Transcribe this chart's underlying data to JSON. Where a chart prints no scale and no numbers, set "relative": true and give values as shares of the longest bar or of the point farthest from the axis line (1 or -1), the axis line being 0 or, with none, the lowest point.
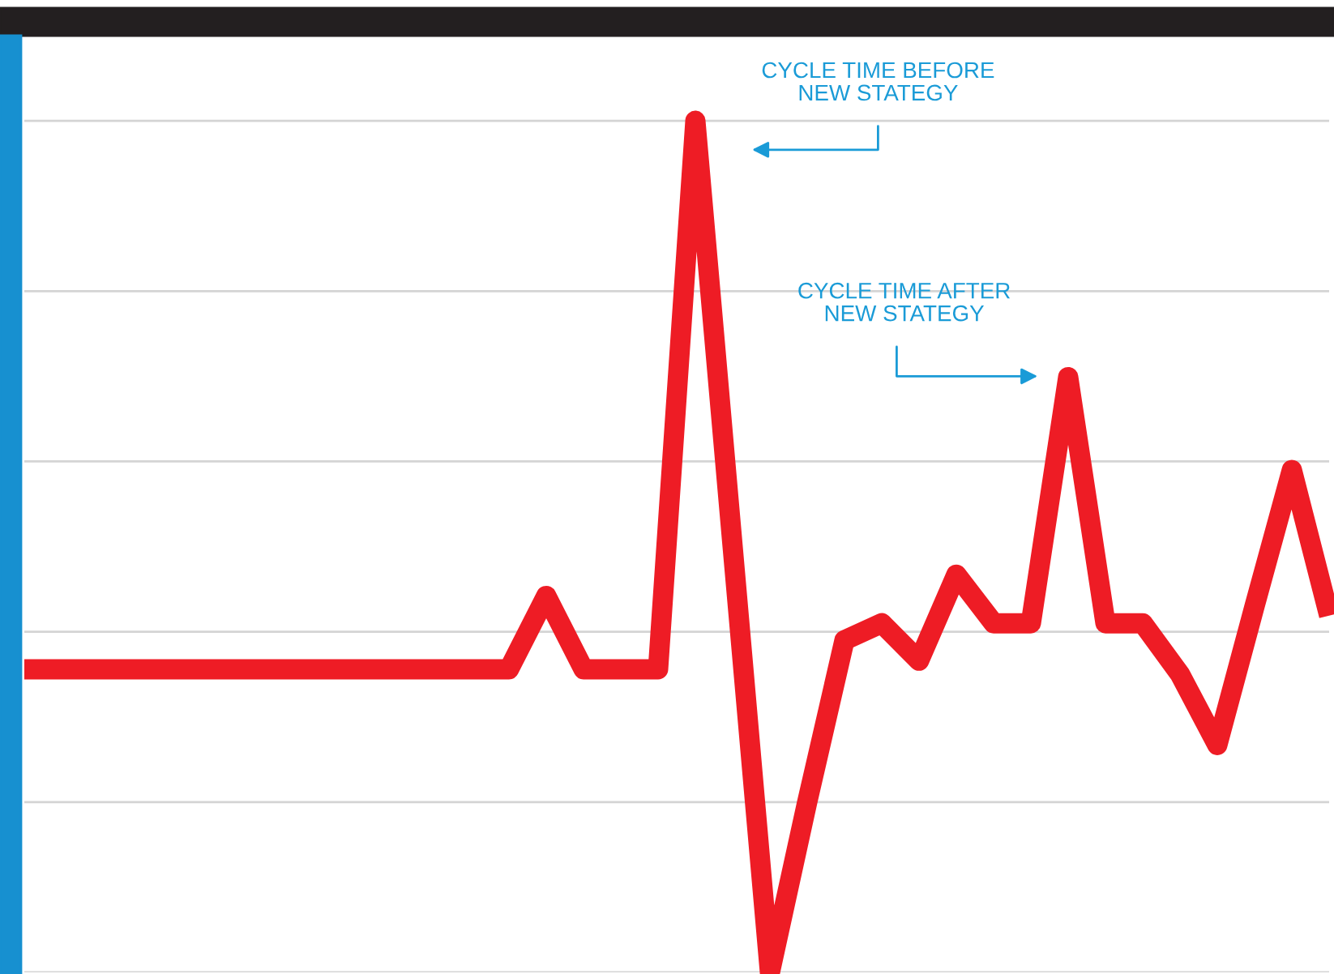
{
  "chart_data": {
    "type": "line",
    "relative": true,
    "grid": true,
    "categories": [
      null,
      null,
      null,
      null,
      null,
      null,
      null,
      null,
      null,
      null,
      null,
      null,
      null,
      null,
      null,
      null,
      null,
      null,
      null,
      null,
      null,
      null,
      null,
      null,
      null,
      null,
      null,
      null,
      null,
      null,
      null,
      null,
      null,
      null,
      null,
      null
    ],
    "series": [
      {
        "color": "#ee1c25",
        "values": [
          0.356,
          0.356,
          0.356,
          0.356,
          0.356,
          0.356,
          0.356,
          0.356,
          0.356,
          0.356,
          0.356,
          0.356,
          0.356,
          0.356,
          0.442,
          0.356,
          0.356,
          0.356,
          1.0,
          0.5,
          0.0,
          0.2,
          0.39,
          0.41,
          0.366,
          0.467,
          0.41,
          0.41,
          0.699,
          0.41,
          0.41,
          0.35,
          0.267,
          0.43,
          0.59,
          0.419
        ]
      }
    ],
    "annotations": [
      "CYCLE TIME BEFORE\nNEW STATEGY",
      "CYCLE TIME AFTER\nNEW STATEGY"
    ]
  }
}
